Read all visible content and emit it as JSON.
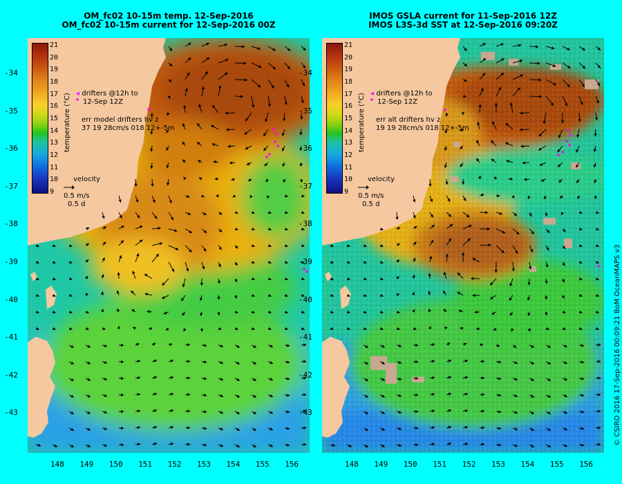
{
  "panels": [
    {
      "title_line1": "OM_fc02 10-15m temp. 12-Sep-2016",
      "title_line2": "OM_fc02 10-15m current for 12-Sep-2016 00Z",
      "drifter_legend_line1": "drifters @12h to",
      "drifter_legend_line2": "12-Sep 12Z",
      "error_line1": "err model drifters hv z",
      "error_line2": "37 19 28cm/s 018 12+-5m",
      "source": "model"
    },
    {
      "title_line1": "IMOS GSLA current for 11-Sep-2016 12Z",
      "title_line2": "IMOS L3S-3d SST at 12-Sep-2016 09:20Z",
      "drifter_legend_line1": "drifters @12h to",
      "drifter_legend_line2": "12-Sep 12Z",
      "error_line1": "err alt drifters hv z",
      "error_line2": "19 19 28cm/s 018 12+-5m",
      "source": "satellite"
    }
  ],
  "velocity_legend": {
    "label": "velocity",
    "speed": "0.5 m/s",
    "duration": "0.5 d"
  },
  "colorbar": {
    "label": "temperature (°C)",
    "ticks": [
      "21",
      "20",
      "19",
      "18",
      "17",
      "16",
      "15",
      "14",
      "13",
      "12",
      "11",
      "10",
      "9"
    ],
    "min": 9,
    "max": 21
  },
  "axes": {
    "lat_ticks": [
      "-34",
      "-35",
      "-36",
      "-37",
      "-38",
      "-39",
      "-40",
      "-41",
      "-42",
      "-43"
    ],
    "lon_ticks": [
      "148",
      "149",
      "150",
      "151",
      "152",
      "153",
      "154",
      "155",
      "156"
    ],
    "lat_range": [
      -43.8,
      -33.2
    ],
    "lon_range": [
      147.1,
      156.6
    ]
  },
  "credit": "© CSIRO 2016  17-Sep-2016 00:09:21 BoM OceanMAPS v3",
  "colors": {
    "background": "#00ffff",
    "land": "#f5c8a0",
    "drifter": "#ff00ff"
  }
}
